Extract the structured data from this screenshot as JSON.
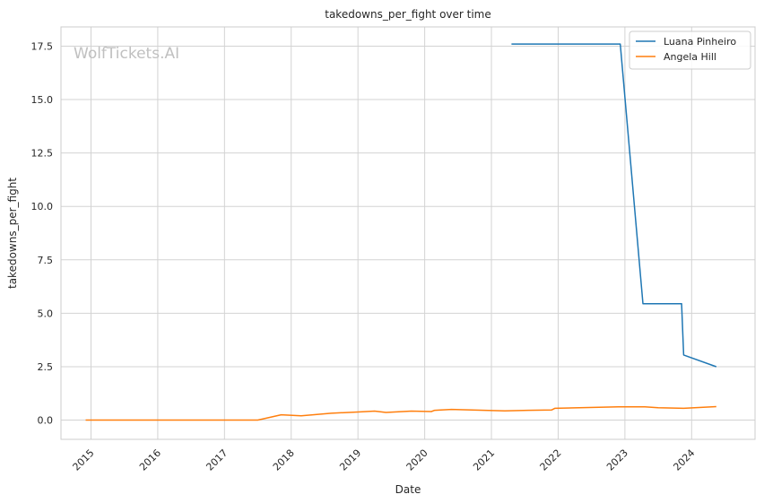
{
  "chart_data": {
    "type": "line",
    "title": "takedowns_per_fight over time",
    "xlabel": "Date",
    "ylabel": "takedowns_per_fight",
    "watermark": "WolfTickets.AI",
    "x_ticks": [
      "2015",
      "2016",
      "2017",
      "2018",
      "2019",
      "2020",
      "2021",
      "2022",
      "2023",
      "2024"
    ],
    "y_ticks": [
      "0.0",
      "2.5",
      "5.0",
      "7.5",
      "10.0",
      "12.5",
      "15.0",
      "17.5"
    ],
    "ylim": [
      -0.9,
      18.4
    ],
    "xlim": [
      2014.55,
      2024.95
    ],
    "grid": true,
    "legend_position": "top-right",
    "series": [
      {
        "name": "Luana Pinheiro",
        "color": "#1f77b4",
        "points": [
          [
            2021.3,
            17.6
          ],
          [
            2022.93,
            17.6
          ],
          [
            2023.27,
            5.45
          ],
          [
            2023.85,
            5.45
          ],
          [
            2023.88,
            3.05
          ],
          [
            2024.37,
            2.5
          ]
        ]
      },
      {
        "name": "Angela Hill",
        "color": "#ff7f0e",
        "points": [
          [
            2014.92,
            0.0
          ],
          [
            2017.5,
            0.0
          ],
          [
            2017.85,
            0.25
          ],
          [
            2018.15,
            0.2
          ],
          [
            2018.6,
            0.32
          ],
          [
            2019.0,
            0.38
          ],
          [
            2019.25,
            0.42
          ],
          [
            2019.42,
            0.36
          ],
          [
            2019.8,
            0.42
          ],
          [
            2020.1,
            0.4
          ],
          [
            2020.15,
            0.46
          ],
          [
            2020.4,
            0.5
          ],
          [
            2021.2,
            0.43
          ],
          [
            2021.55,
            0.46
          ],
          [
            2021.9,
            0.47
          ],
          [
            2021.95,
            0.55
          ],
          [
            2022.9,
            0.62
          ],
          [
            2023.3,
            0.62
          ],
          [
            2023.5,
            0.58
          ],
          [
            2023.88,
            0.55
          ],
          [
            2024.37,
            0.63
          ]
        ]
      }
    ]
  }
}
